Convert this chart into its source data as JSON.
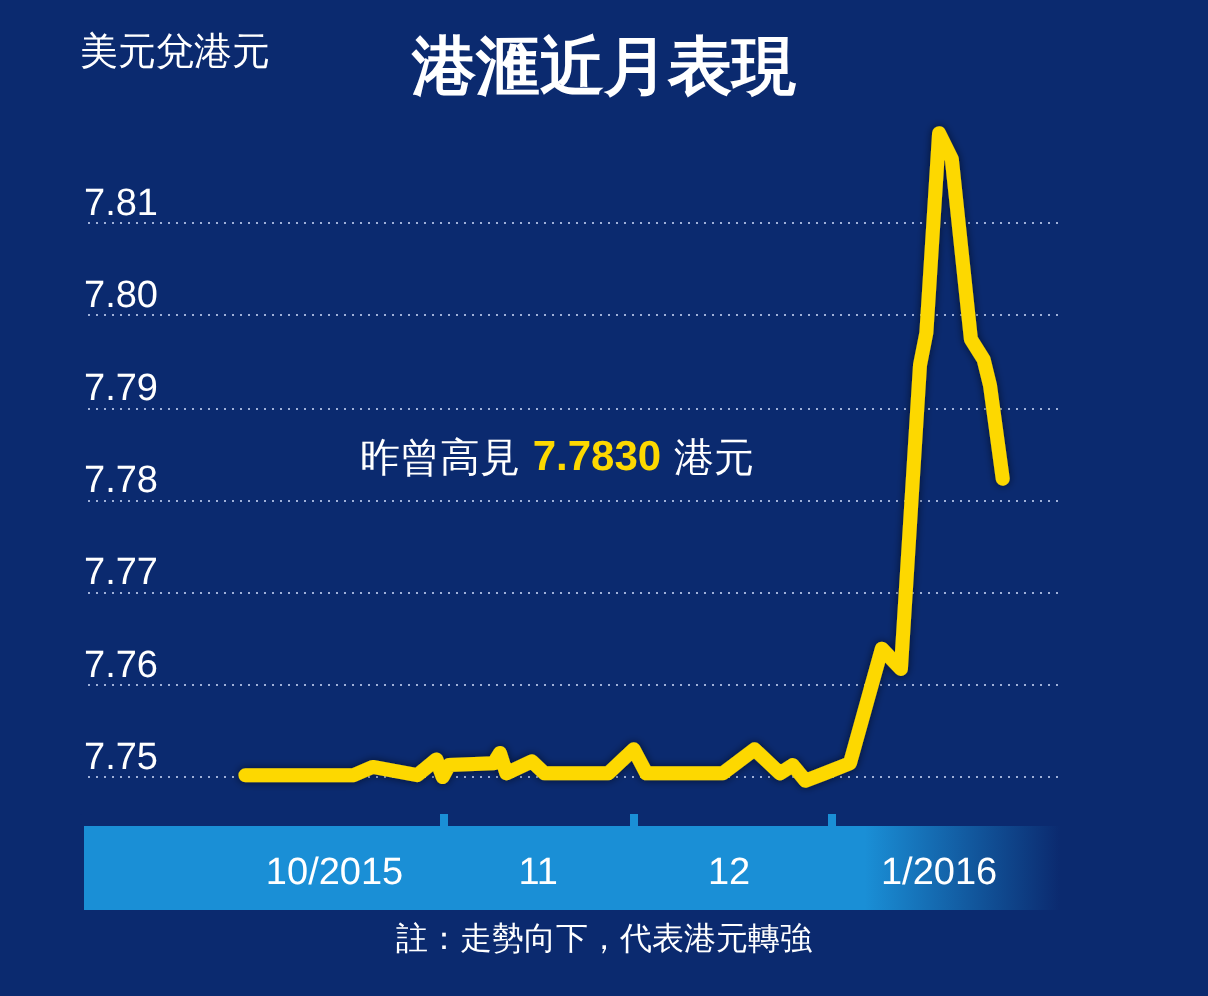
{
  "chart_data": {
    "type": "line",
    "title": "港滙近月表現",
    "ylabel": "美元兌港元",
    "annotations": [
      "昨曾高見 7.7830 港元",
      "註：走勢向下，代表港元轉強"
    ],
    "series": [
      {
        "color": "#fdd800",
        "x": [
          "2015-10-01",
          "2015-10-18",
          "2015-10-21",
          "2015-10-28",
          "2015-10-31",
          "2015-11-01",
          "2015-11-02",
          "2015-11-09",
          "2015-11-10",
          "2015-11-11",
          "2015-11-15",
          "2015-11-17",
          "2015-11-27",
          "2015-12-01",
          "2015-12-03",
          "2015-12-15",
          "2015-12-20",
          "2015-12-24",
          "2015-12-26",
          "2015-12-28",
          "2015-12-31",
          "2016-01-04",
          "2016-01-09",
          "2016-01-12",
          "2016-01-15",
          "2016-01-16",
          "2016-01-18",
          "2016-01-20",
          "2016-01-23",
          "2016-01-25",
          "2016-01-26",
          "2016-01-28"
        ],
        "values": [
          7.7502,
          7.7502,
          7.7511,
          7.7502,
          7.7519,
          7.75,
          7.7513,
          7.7515,
          7.7526,
          7.7504,
          7.7517,
          7.7504,
          7.7504,
          7.753,
          7.7504,
          7.7504,
          7.753,
          7.7504,
          7.7513,
          7.7496,
          7.7504,
          7.7515,
          7.7639,
          7.7617,
          7.7946,
          7.7981,
          7.8197,
          7.8169,
          7.7974,
          7.7952,
          7.7924,
          7.7823
        ]
      }
    ],
    "xlim": [
      "2015-09-05",
      "2016-02-06"
    ],
    "xticks": [
      {
        "value": "2015-10-15",
        "label": "10/2015"
      },
      {
        "value": "2015-11-01",
        "label": null
      },
      {
        "value": "2015-11-16",
        "label": "11"
      },
      {
        "value": "2015-12-01",
        "label": null
      },
      {
        "value": "2015-12-16",
        "label": "12"
      },
      {
        "value": "2016-01-01",
        "label": null
      },
      {
        "value": "2016-01-18",
        "label": "1/2016"
      }
    ],
    "ylim": [
      7.746,
      7.822
    ],
    "yticks": [
      7.75,
      7.76,
      7.77,
      7.78,
      7.79,
      {
        "value": 7.8,
        "label": "7.80"
      },
      7.81
    ],
    "grid": "y",
    "line_style": "solid"
  }
}
